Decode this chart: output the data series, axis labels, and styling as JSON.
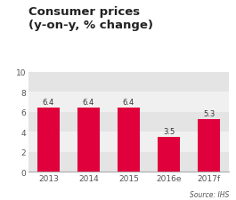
{
  "categories": [
    "2013",
    "2014",
    "2015",
    "2016e",
    "2017f"
  ],
  "values": [
    6.4,
    6.4,
    6.4,
    3.5,
    5.3
  ],
  "bar_color": "#e0003c",
  "title_line1": "Consumer prices",
  "title_line2": "(y-on-y, % change)",
  "ylim": [
    0,
    10
  ],
  "yticks": [
    0,
    2,
    4,
    6,
    8,
    10
  ],
  "source_text": "Source: IHS",
  "background_color": "#ffffff",
  "band_color_dark": "#e4e4e4",
  "band_color_light": "#f0f0f0",
  "label_fontsize": 6.0,
  "title_fontsize": 9.5,
  "tick_fontsize": 6.5,
  "source_fontsize": 5.5,
  "bar_width": 0.55
}
